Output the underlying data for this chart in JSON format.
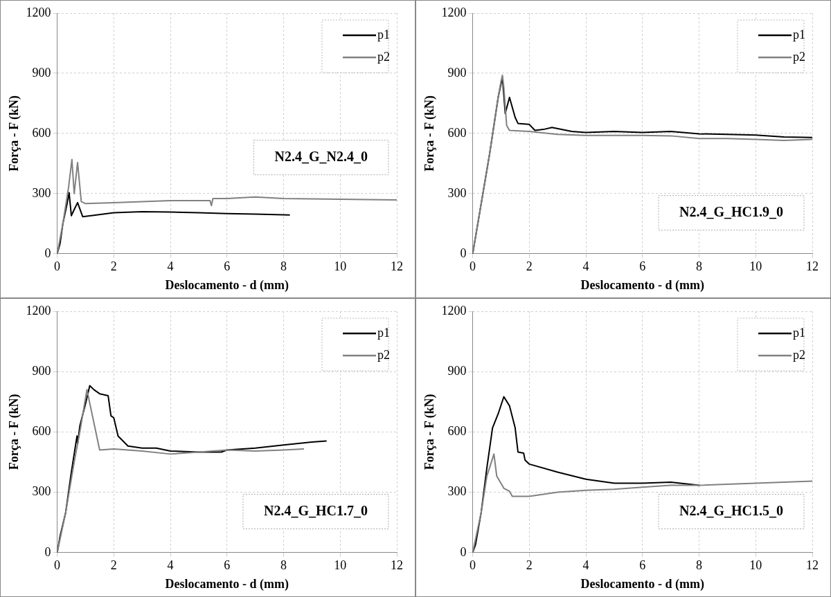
{
  "chart_data": [
    {
      "type": "line",
      "xlabel": "Deslocamento - d (mm)",
      "ylabel": "Força - F (kN)",
      "xlim": [
        0,
        12
      ],
      "xticks": [
        0,
        2,
        4,
        6,
        8,
        10,
        12
      ],
      "ylim": [
        0,
        1200
      ],
      "yticks": [
        0,
        300,
        600,
        900,
        1200
      ],
      "grid": true,
      "legend": "top right",
      "marker": "none",
      "annotations": [
        "N2.4_G_N2.4_0"
      ],
      "series": [
        {
          "name": "p1",
          "color": "#000000",
          "x": [
            0,
            0.1,
            0.2,
            0.35,
            0.42,
            0.5,
            0.6,
            0.72,
            0.9,
            1.2,
            2,
            3,
            4,
            5,
            6,
            7,
            8.2
          ],
          "values": [
            0,
            50,
            150,
            250,
            305,
            190,
            220,
            255,
            185,
            190,
            205,
            210,
            208,
            205,
            200,
            198,
            193
          ]
        },
        {
          "name": "p2",
          "color": "#808080",
          "x": [
            0,
            0.2,
            0.4,
            0.52,
            0.6,
            0.72,
            0.85,
            1,
            2,
            4,
            5.4,
            5.45,
            5.5,
            6,
            7,
            8,
            10,
            12
          ],
          "values": [
            0,
            150,
            330,
            470,
            300,
            455,
            260,
            250,
            255,
            265,
            265,
            240,
            275,
            275,
            283,
            275,
            272,
            268
          ]
        }
      ]
    },
    {
      "type": "line",
      "xlabel": "Deslocamento - d (mm)",
      "ylabel": "Força - F (kN)",
      "xlim": [
        0,
        12
      ],
      "xticks": [
        0,
        2,
        4,
        6,
        8,
        10,
        12
      ],
      "ylim": [
        0,
        1200
      ],
      "yticks": [
        0,
        300,
        600,
        900,
        1200
      ],
      "grid": true,
      "legend": "top right",
      "marker": "none",
      "annotations": [
        "N2.4_G_HC1.9_0"
      ],
      "series": [
        {
          "name": "p1",
          "color": "#000000",
          "x": [
            0,
            0.3,
            0.6,
            0.9,
            1.05,
            1.15,
            1.3,
            1.5,
            1.6,
            2,
            2.2,
            2.5,
            2.8,
            3.5,
            4,
            5,
            6,
            7,
            8,
            9,
            10,
            11,
            12
          ],
          "values": [
            0,
            250,
            500,
            780,
            880,
            700,
            780,
            680,
            650,
            645,
            615,
            620,
            630,
            610,
            605,
            610,
            605,
            610,
            598,
            595,
            592,
            582,
            580
          ]
        },
        {
          "name": "p2",
          "color": "#808080",
          "x": [
            0,
            0.3,
            0.6,
            0.9,
            1,
            1.05,
            1.1,
            1.2,
            1.3,
            2,
            3,
            4,
            5,
            6,
            7,
            8,
            9,
            10,
            11,
            12
          ],
          "values": [
            0,
            250,
            500,
            780,
            860,
            890,
            830,
            640,
            615,
            610,
            595,
            590,
            590,
            590,
            588,
            575,
            575,
            570,
            565,
            570
          ]
        }
      ]
    },
    {
      "type": "line",
      "xlabel": "Deslocamento - d (mm)",
      "ylabel": "Força - F (kN)",
      "xlim": [
        0,
        12
      ],
      "xticks": [
        0,
        2,
        4,
        6,
        8,
        10,
        12
      ],
      "ylim": [
        0,
        1200
      ],
      "yticks": [
        0,
        300,
        600,
        900,
        1200
      ],
      "grid": true,
      "legend": "top right",
      "marker": "none",
      "annotations": [
        "N2.4_G_HC1.7_0"
      ],
      "series": [
        {
          "name": "p1",
          "color": "#000000",
          "x": [
            0,
            0.1,
            0.3,
            0.5,
            0.7,
            0.72,
            0.8,
            1,
            1.15,
            1.3,
            1.5,
            1.8,
            1.9,
            2,
            2.15,
            2.5,
            3,
            3.5,
            4,
            5,
            5.8,
            6,
            7,
            8,
            9,
            9.5
          ],
          "values": [
            0,
            80,
            200,
            400,
            580,
            540,
            630,
            740,
            830,
            810,
            790,
            780,
            680,
            670,
            580,
            530,
            520,
            520,
            505,
            500,
            500,
            510,
            520,
            535,
            550,
            555
          ]
        },
        {
          "name": "p2",
          "color": "#808080",
          "x": [
            0,
            0.3,
            0.6,
            0.8,
            1.05,
            1.5,
            2,
            3,
            4,
            5,
            6,
            7,
            8,
            8.7
          ],
          "values": [
            0,
            200,
            450,
            600,
            810,
            510,
            515,
            505,
            490,
            500,
            510,
            505,
            510,
            515
          ]
        }
      ]
    },
    {
      "type": "line",
      "xlabel": "Deslocamento - d (mm)",
      "ylabel": "Força - F (kN)",
      "xlim": [
        0,
        12
      ],
      "xticks": [
        0,
        2,
        4,
        6,
        8,
        10,
        12
      ],
      "ylim": [
        0,
        1200
      ],
      "yticks": [
        0,
        300,
        600,
        900,
        1200
      ],
      "grid": true,
      "legend": "top right",
      "marker": "none",
      "annotations": [
        "N2.4_G_HC1.5_0"
      ],
      "series": [
        {
          "name": "p1",
          "color": "#000000",
          "x": [
            0,
            0.1,
            0.3,
            0.5,
            0.7,
            0.9,
            1.1,
            1.3,
            1.5,
            1.6,
            1.8,
            1.85,
            2,
            3,
            4,
            5,
            6,
            7,
            8
          ],
          "values": [
            0,
            40,
            200,
            420,
            620,
            690,
            775,
            730,
            620,
            500,
            495,
            460,
            440,
            400,
            365,
            345,
            345,
            350,
            335
          ]
        },
        {
          "name": "p2",
          "color": "#808080",
          "x": [
            0,
            0.3,
            0.5,
            0.75,
            0.85,
            1.1,
            1.3,
            1.4,
            2,
            3,
            4,
            5,
            6,
            7,
            8,
            10,
            12
          ],
          "values": [
            0,
            200,
            380,
            490,
            380,
            320,
            305,
            280,
            280,
            300,
            310,
            315,
            325,
            335,
            335,
            345,
            355
          ]
        }
      ]
    }
  ]
}
